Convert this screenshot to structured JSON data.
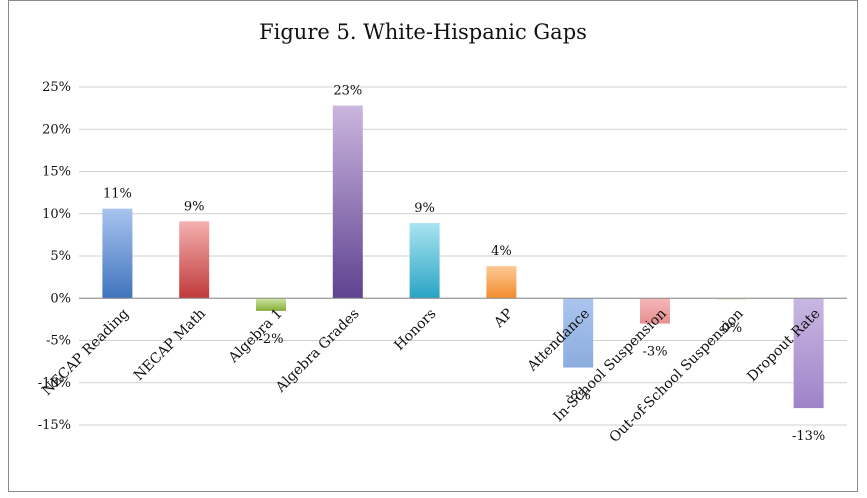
{
  "chart_data": {
    "type": "bar",
    "title": "Figure 5. White-Hispanic Gaps",
    "xlabel": "",
    "ylabel": "",
    "ylim": [
      -0.15,
      0.25
    ],
    "y_ticks": [
      "25%",
      "20%",
      "15%",
      "10%",
      "5%",
      "0%",
      "-5%",
      "-10%",
      "-15%"
    ],
    "y_tick_values": [
      0.25,
      0.2,
      0.15,
      0.1,
      0.05,
      0.0,
      -0.05,
      -0.1,
      -0.15
    ],
    "grid": true,
    "legend": "none",
    "categories": [
      "NECAP Reading",
      "NECAP Math",
      "Algebra 1",
      "Algebra Grades",
      "Honors",
      "AP",
      "Attendance",
      "In-School Suspension",
      "Out-of-School Suspension",
      "Dropout Rate"
    ],
    "values": [
      0.106,
      0.091,
      -0.015,
      0.228,
      0.089,
      0.038,
      -0.082,
      -0.03,
      -0.002,
      -0.13
    ],
    "data_labels": [
      "11%",
      "9%",
      "-2%",
      "23%",
      "9%",
      "4%",
      "-8%",
      "-3%",
      "0%",
      "-13%"
    ],
    "colors": [
      [
        "#a9c4ef",
        "#3f74bd"
      ],
      [
        "#f4b1b0",
        "#c0393a"
      ],
      [
        "#cfe6a3",
        "#86ad3a"
      ],
      [
        "#cbb6df",
        "#5e4290"
      ],
      [
        "#a9e4f0",
        "#29a4c4"
      ],
      [
        "#fcc995",
        "#f28c2d"
      ],
      [
        "#aac5ef",
        "#8cacde"
      ],
      [
        "#f7b7b7",
        "#e59090"
      ],
      [
        "#eef3e5",
        "#dfe8cf"
      ],
      [
        "#c9b7e2",
        "#9e83c8"
      ]
    ]
  }
}
